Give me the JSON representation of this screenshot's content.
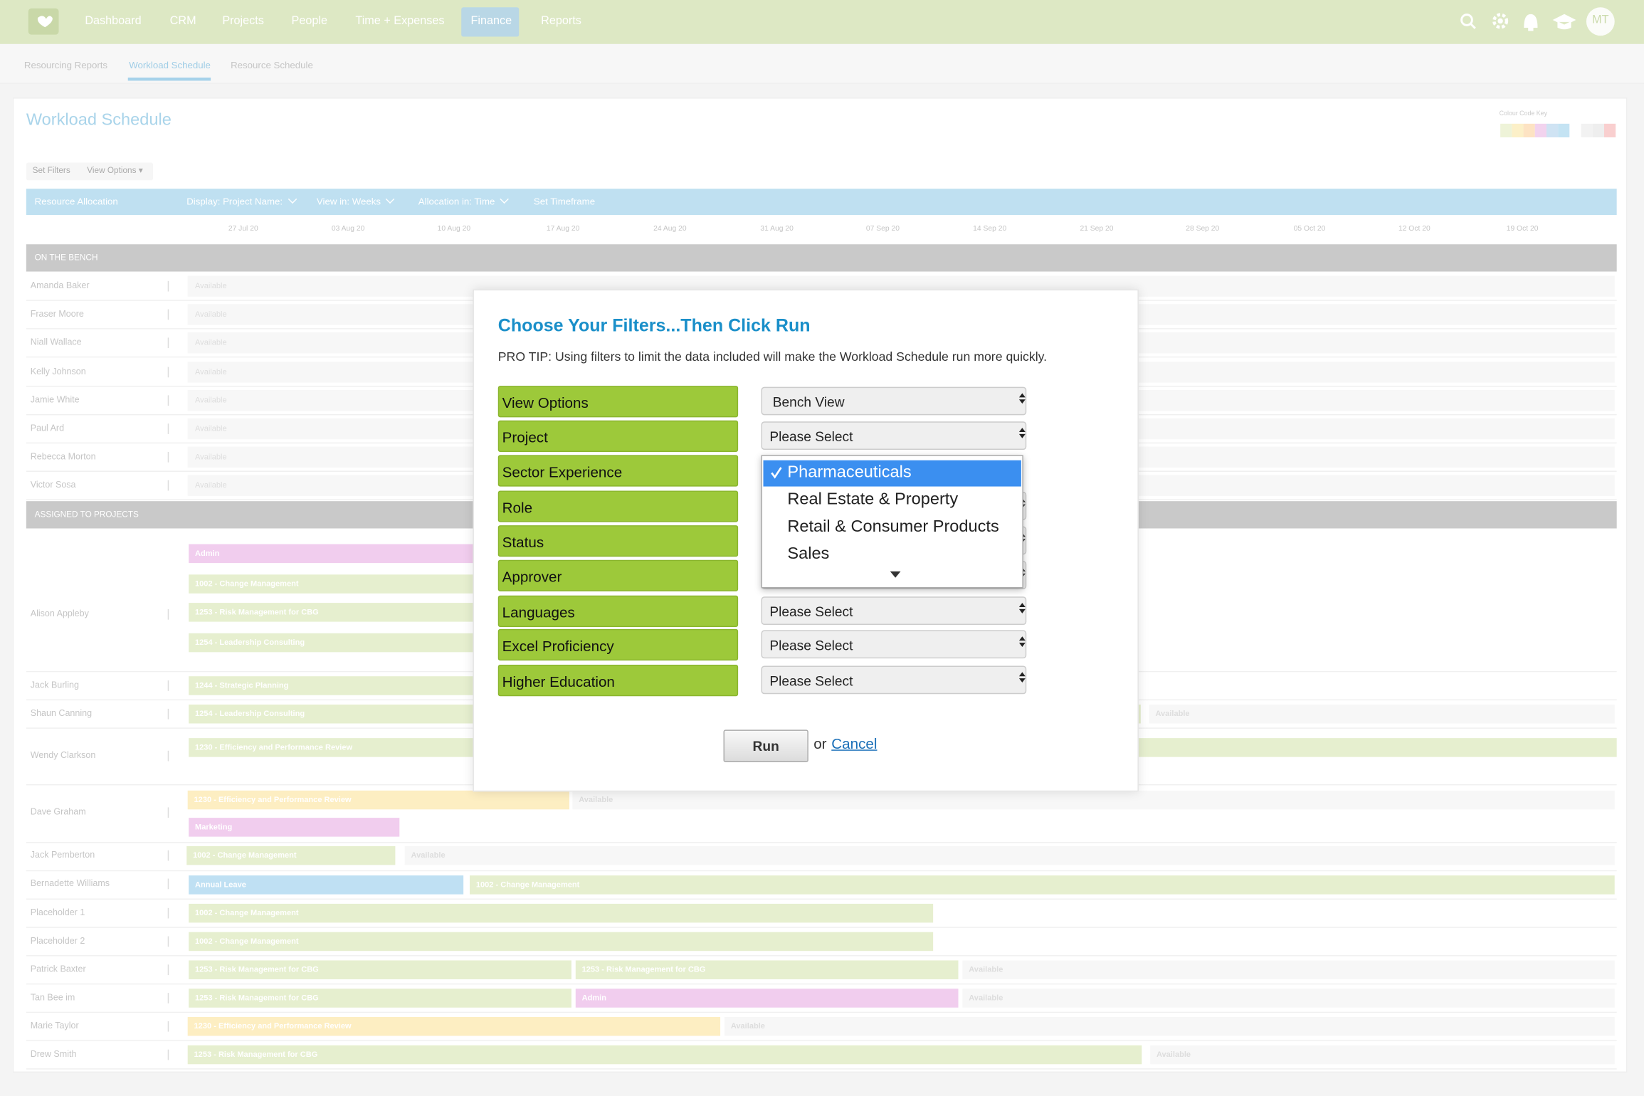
{
  "nav": {
    "items": [
      "Dashboard",
      "CRM",
      "Projects",
      "People",
      "Time + Expenses",
      "Finance",
      "Reports"
    ],
    "active": 5,
    "avatar": "MT"
  },
  "tabs": {
    "items": [
      "Resourcing Reports",
      "Workload Schedule",
      "Resource Schedule"
    ],
    "active": 1
  },
  "page": {
    "title": "Workload Schedule",
    "colour_key": "Colour Code Key",
    "buttons": [
      "Set Filters",
      "View Options ▾"
    ]
  },
  "toolbar": [
    "Resource Allocation",
    "Display: Project Name:",
    "View in: Weeks",
    "Allocation in: Time",
    "Set Timeframe"
  ],
  "dates": [
    "27 Jul 20",
    "03 Aug 20",
    "10 Aug 20",
    "17 Aug 20",
    "24 Aug 20",
    "31 Aug 20",
    "07 Sep 20",
    "14 Sep 20",
    "21 Sep 20",
    "28 Sep 20",
    "05 Oct 20",
    "12 Oct 20",
    "19 Oct 20"
  ],
  "bench": {
    "label": "ON THE BENCH",
    "rows": [
      {
        "name": "Amanda Baker",
        "status": "Available"
      },
      {
        "name": "Fraser Moore",
        "status": "Available"
      },
      {
        "name": "Niall Wallace",
        "status": "Available"
      },
      {
        "name": "Kelly Johnson",
        "status": "Available"
      },
      {
        "name": "Jamie White",
        "status": "Available"
      },
      {
        "name": "Paul Ard",
        "status": "Available"
      },
      {
        "name": "Rebecca Morton",
        "status": "Available"
      },
      {
        "name": "Victor Sosa",
        "status": "Available"
      }
    ]
  },
  "assigned": {
    "label": "ASSIGNED TO PROJECTS",
    "rows": [
      {
        "name": "Alison Appleby",
        "bars": [
          {
            "label": "Admin"
          },
          {
            "label": "1002 - Change Management"
          },
          {
            "label": "1253 - Risk Management for CBG"
          },
          {
            "label": "1254 - Leadership Consulting"
          }
        ]
      },
      {
        "name": "Jack Burling",
        "bars": [
          {
            "label": "1244 - Strategic Planning"
          }
        ]
      },
      {
        "name": "Shaun Canning",
        "bars": [
          {
            "label": "1254 - Leadership Consulting"
          },
          {
            "label": "Available"
          }
        ]
      },
      {
        "name": "Wendy Clarkson",
        "bars": [
          {
            "label": "1230 - Efficiency and Performance Review"
          }
        ]
      },
      {
        "name": "Dave Graham",
        "bars": [
          {
            "label": "1230 - Efficiency and Performance Review"
          },
          {
            "label": "Available"
          },
          {
            "label": "Marketing"
          }
        ]
      },
      {
        "name": "Jack Pemberton",
        "bars": [
          {
            "label": "1002 - Change Management"
          },
          {
            "label": "Available"
          }
        ]
      },
      {
        "name": "Bernadette Williams",
        "bars": [
          {
            "label": "Annual Leave"
          },
          {
            "label": "1002 - Change Management"
          }
        ]
      },
      {
        "name": "Placeholder 1",
        "bars": [
          {
            "label": "1002 - Change Management"
          }
        ]
      },
      {
        "name": "Placeholder 2",
        "bars": [
          {
            "label": "1002 - Change Management"
          }
        ]
      },
      {
        "name": "Patrick Baxter",
        "bars": [
          {
            "label": "1253 - Risk Management for CBG"
          },
          {
            "label": "1253 - Risk Management for CBG"
          },
          {
            "label": "Available"
          }
        ]
      },
      {
        "name": "Tan Bee im",
        "bars": [
          {
            "label": "1253 - Risk Management for CBG"
          },
          {
            "label": "Admin"
          },
          {
            "label": "Available"
          }
        ]
      },
      {
        "name": "Marie Taylor",
        "bars": [
          {
            "label": "1230 - Efficiency and Performance Review"
          },
          {
            "label": "Available"
          }
        ]
      },
      {
        "name": "Drew Smith",
        "bars": [
          {
            "label": "1253 - Risk Management for CBG"
          },
          {
            "label": "Available"
          }
        ]
      }
    ]
  },
  "modal": {
    "title": "Choose Your Filters...Then Click Run",
    "tip": "PRO TIP: Using filters to limit the data included will make the Workload Schedule run more quickly.",
    "filters": [
      {
        "label": "View Options",
        "value": "Bench View"
      },
      {
        "label": "Project",
        "value": "Please Select"
      },
      {
        "label": "Sector Experience"
      },
      {
        "label": "Role"
      },
      {
        "label": "Status"
      },
      {
        "label": "Approver"
      },
      {
        "label": "Languages",
        "value": "Please Select"
      },
      {
        "label": "Excel Proficiency",
        "value": "Please Select"
      },
      {
        "label": "Higher Education",
        "value": "Please Select"
      }
    ],
    "dropdown": {
      "options": [
        "Pharmaceuticals",
        "Real Estate & Property",
        "Retail & Consumer Products",
        "Sales"
      ],
      "selected": 0
    },
    "run": "Run",
    "or": "or",
    "cancel": "Cancel"
  }
}
